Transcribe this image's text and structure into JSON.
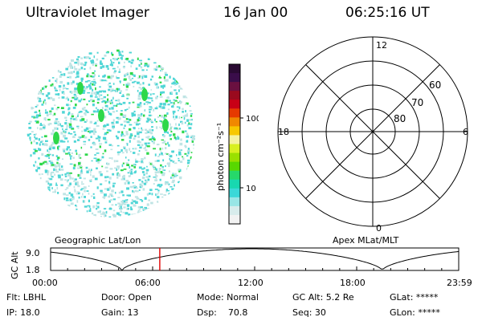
{
  "header": {
    "title": "Ultraviolet Imager",
    "date": "16 Jan 00",
    "time": "06:25:16 UT"
  },
  "colorbar": {
    "label": "photon cm⁻²s⁻¹",
    "ticks": [
      "100",
      "10"
    ],
    "colors": [
      "#2a0a33",
      "#3a0d4a",
      "#6a1040",
      "#9a0a1e",
      "#c80016",
      "#e63a00",
      "#f08800",
      "#f7c800",
      "#f5f2a0",
      "#d8f020",
      "#9ae000",
      "#58d800",
      "#26d86a",
      "#18d8b0",
      "#3ad8d8",
      "#98e6e6",
      "#d8ecec",
      "#f2f2f2"
    ]
  },
  "polar": {
    "mlt_labels": {
      "top": "12",
      "bottom": "0",
      "left": "18",
      "right": "6"
    },
    "lat_labels": [
      "60",
      "70",
      "80"
    ]
  },
  "timeline": {
    "left_label": "Geographic Lat/Lon",
    "right_label": "Apex MLat/MLT",
    "axis_label": "GC Alt",
    "y_ticks": [
      "9.0",
      "1.8"
    ],
    "x_ticks": [
      "00:00",
      "06:00",
      "12:00",
      "18:00",
      "23:59"
    ],
    "current_time_hours": 6.42,
    "marker_color": "#e00000"
  },
  "info": {
    "flt": "Flt: LBHL",
    "door": "Door: Open",
    "mode": "Mode: Normal",
    "gcalt": "GC Alt: 5.2 Re",
    "glat": "GLat: *****",
    "ip": "IP: 18.0",
    "gain": "Gain: 13",
    "dsp": "Dsp:    70.8",
    "seq": "Seq: 30",
    "glon": "GLon: *****"
  },
  "image_colors": {
    "cyan": "#4fd6d6",
    "light": "#bfe4e4",
    "green": "#2ed84a",
    "white_bg": "#ffffff"
  }
}
